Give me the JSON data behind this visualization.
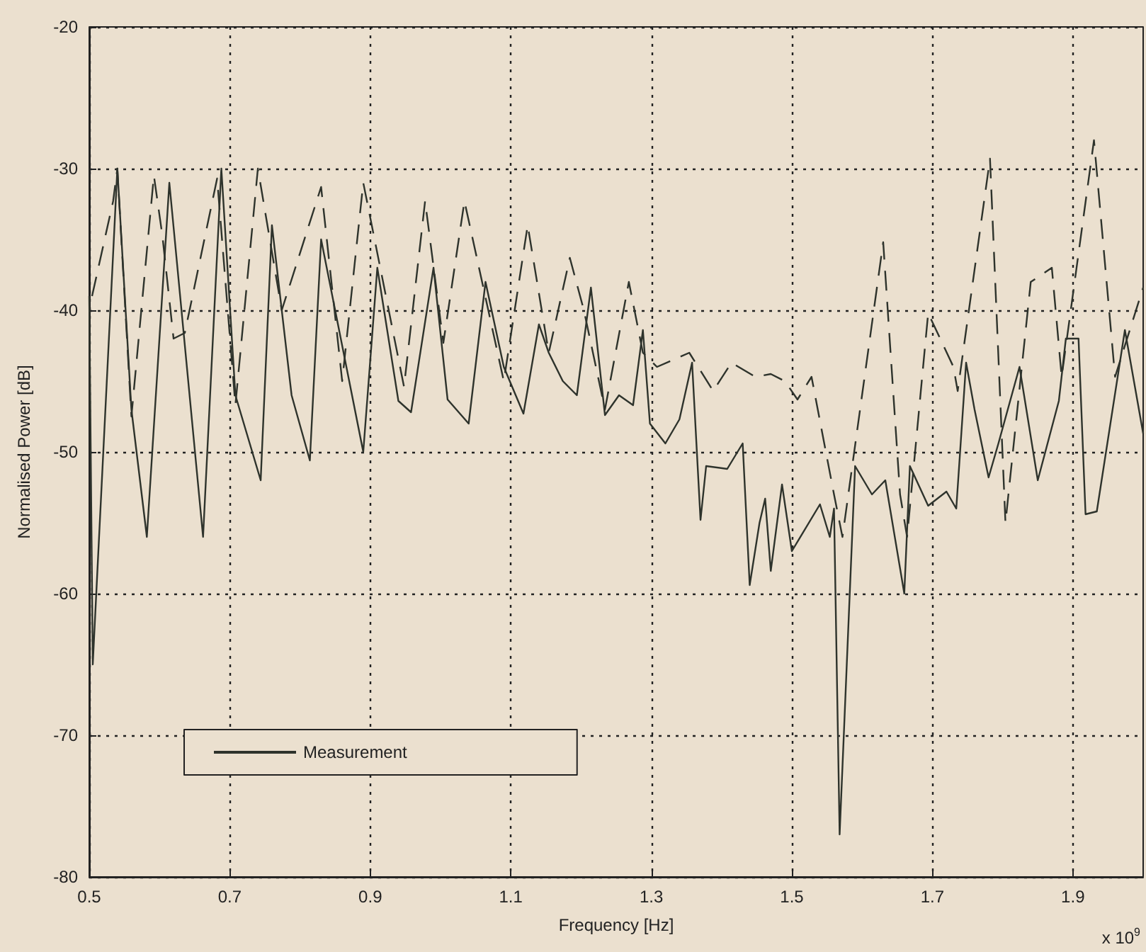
{
  "chart_data": {
    "type": "line",
    "xlabel": "Frequency [Hz]",
    "ylabel": "Normalised Power [dB]",
    "xlim": [
      0.5,
      2.0
    ],
    "xticks": [
      0.5,
      0.7,
      0.9,
      1.1,
      1.3,
      1.5,
      1.7,
      1.9
    ],
    "ylim": [
      -80,
      -20
    ],
    "yticks": [
      -80,
      -70,
      -60,
      -50,
      -40,
      -30,
      -20
    ],
    "grid": true,
    "legend": "bottom left",
    "marker": "none",
    "annotations": [
      "x 10$^{9}$"
    ],
    "series": [
      {
        "name": "Measurement",
        "color": "#2e332c",
        "line_style": "solid",
        "x": [
          0.5,
          0.505,
          0.54,
          0.56,
          0.582,
          0.614,
          0.662,
          0.688,
          0.708,
          0.744,
          0.76,
          0.788,
          0.814,
          0.83,
          0.89,
          0.91,
          0.94,
          0.958,
          0.99,
          1.01,
          1.04,
          1.064,
          1.09,
          1.118,
          1.14,
          1.154,
          1.174,
          1.194,
          1.214,
          1.234,
          1.254,
          1.274,
          1.288,
          1.298,
          1.32,
          1.34,
          1.358,
          1.37,
          1.378,
          1.408,
          1.43,
          1.44,
          1.454,
          1.462,
          1.47,
          1.486,
          1.5,
          1.54,
          1.554,
          1.56,
          1.568,
          1.59,
          1.614,
          1.633,
          1.66,
          1.668,
          1.694,
          1.72,
          1.734,
          1.748,
          1.76,
          1.78,
          1.794,
          1.824,
          1.85,
          1.88,
          1.89,
          1.908,
          1.918,
          1.934,
          1.974,
          2.0
        ],
        "values": [
          -39,
          -65,
          -30,
          -47,
          -56,
          -31,
          -56,
          -30,
          -46,
          -52,
          -34,
          -46,
          -50.6,
          -35,
          -50,
          -37,
          -46.4,
          -47.2,
          -37,
          -46.3,
          -48,
          -38,
          -44,
          -47.3,
          -41,
          -43,
          -45,
          -46,
          -38.4,
          -47.4,
          -46,
          -46.7,
          -41.4,
          -48,
          -49.4,
          -47.7,
          -43.7,
          -54.8,
          -51,
          -51.2,
          -49.4,
          -59.4,
          -55,
          -53.3,
          -58.4,
          -52.3,
          -57,
          -53.7,
          -56,
          -54,
          -77,
          -51,
          -53,
          -52,
          -60,
          -51,
          -53.8,
          -52.8,
          -54,
          -43.7,
          -47,
          -51.8,
          -49.4,
          -44,
          -52,
          -46.4,
          -42,
          -42,
          -54.4,
          -54.2,
          -41.4,
          -48.7
        ]
      },
      {
        "color": "#2e332c",
        "line_style": "dashed",
        "x": [
          0.504,
          0.534,
          0.54,
          0.56,
          0.592,
          0.604,
          0.62,
          0.636,
          0.682,
          0.708,
          0.74,
          0.774,
          0.83,
          0.86,
          0.89,
          0.948,
          0.978,
          1.004,
          1.034,
          1.09,
          1.124,
          1.154,
          1.184,
          1.204,
          1.234,
          1.268,
          1.288,
          1.308,
          1.354,
          1.388,
          1.414,
          1.448,
          1.47,
          1.49,
          1.508,
          1.528,
          1.56,
          1.572,
          1.63,
          1.654,
          1.664,
          1.694,
          1.73,
          1.736,
          1.782,
          1.804,
          1.84,
          1.87,
          1.884,
          1.93,
          1.96,
          2.0
        ],
        "values": [
          -39,
          -32.3,
          -30,
          -47.5,
          -30.5,
          -34.7,
          -42,
          -41.6,
          -30.7,
          -46.7,
          -30,
          -40,
          -31.3,
          -45,
          -31,
          -45.4,
          -32.3,
          -42.3,
          -32.3,
          -45,
          -34,
          -43,
          -36.3,
          -40,
          -47,
          -38,
          -43,
          -44,
          -43,
          -45.7,
          -43.7,
          -44.7,
          -44.5,
          -45,
          -46.3,
          -44.7,
          -53,
          -56,
          -35.2,
          -53,
          -56,
          -40.2,
          -44,
          -45.7,
          -29.3,
          -55,
          -38,
          -37,
          -44.7,
          -28,
          -44.7,
          -38.4
        ]
      }
    ]
  }
}
